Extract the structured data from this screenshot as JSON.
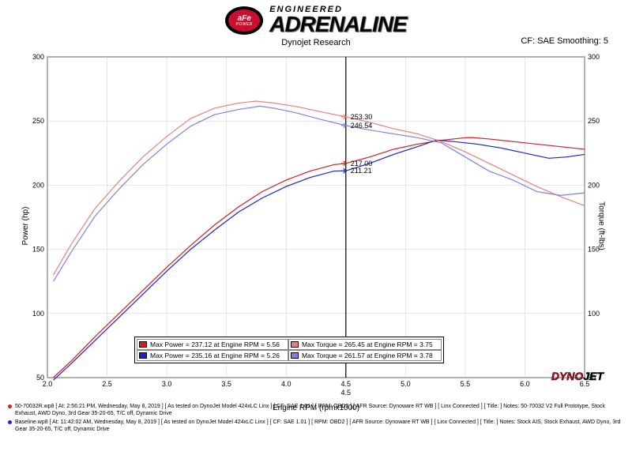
{
  "header": {
    "badge_main": "aFe",
    "badge_sub": "POWER",
    "engineered": "ENGINEERED",
    "adrenaline": "ADRENALINE"
  },
  "subtitle": "Dynojet Research",
  "cf_label": "CF: SAE Smoothing: 5",
  "chart": {
    "type": "line",
    "background": "#ffffff",
    "grid_color": "#cccccc",
    "axis_color": "#000000",
    "x_axis": {
      "label": "Engine RPM (rpmx1000)",
      "min": 2.0,
      "max": 6.5,
      "ticks": [
        2.0,
        2.5,
        3.0,
        3.5,
        4.0,
        4.5,
        5.0,
        5.5,
        6.0,
        6.5
      ],
      "fontsize": 9
    },
    "y_left": {
      "label": "Power (hp)",
      "min": 50,
      "max": 300,
      "ticks": [
        50,
        100,
        150,
        200,
        250,
        300
      ],
      "fontsize": 9
    },
    "y_right": {
      "label": "Torque (ft-lbs)",
      "min": 50,
      "max": 300,
      "ticks": [
        50,
        100,
        150,
        200,
        250,
        300
      ],
      "fontsize": 9
    },
    "cursor_x": 4.5,
    "cursor_label": "4.5",
    "markers": [
      {
        "label": "253.30",
        "x": 4.5,
        "y": 253.3,
        "color": "#e88080"
      },
      {
        "label": "246.54",
        "x": 4.5,
        "y": 246.5,
        "color": "#8080e8"
      },
      {
        "label": "217.00",
        "x": 4.5,
        "y": 217.0,
        "color": "#d02020"
      },
      {
        "label": "211.21",
        "x": 4.5,
        "y": 211.2,
        "color": "#2020d0"
      }
    ],
    "series": [
      {
        "name": "power_red",
        "axis": "left",
        "color": "#d02020",
        "width": 1.2,
        "points": [
          [
            2.05,
            50
          ],
          [
            2.2,
            63
          ],
          [
            2.4,
            82
          ],
          [
            2.6,
            100
          ],
          [
            2.8,
            118
          ],
          [
            3.0,
            136
          ],
          [
            3.2,
            153
          ],
          [
            3.4,
            169
          ],
          [
            3.6,
            183
          ],
          [
            3.8,
            195
          ],
          [
            4.0,
            204
          ],
          [
            4.2,
            211
          ],
          [
            4.4,
            216
          ],
          [
            4.5,
            217
          ],
          [
            4.7,
            222
          ],
          [
            4.9,
            228
          ],
          [
            5.1,
            232
          ],
          [
            5.3,
            235
          ],
          [
            5.5,
            237
          ],
          [
            5.56,
            237.1
          ],
          [
            5.7,
            236
          ],
          [
            5.9,
            234
          ],
          [
            6.1,
            232
          ],
          [
            6.3,
            230
          ],
          [
            6.5,
            228
          ]
        ]
      },
      {
        "name": "power_blue",
        "axis": "left",
        "color": "#2020d0",
        "width": 1.2,
        "points": [
          [
            2.05,
            48
          ],
          [
            2.2,
            61
          ],
          [
            2.4,
            79
          ],
          [
            2.6,
            97
          ],
          [
            2.8,
            115
          ],
          [
            3.0,
            133
          ],
          [
            3.2,
            150
          ],
          [
            3.4,
            165
          ],
          [
            3.6,
            179
          ],
          [
            3.8,
            190
          ],
          [
            4.0,
            199
          ],
          [
            4.2,
            206
          ],
          [
            4.4,
            211
          ],
          [
            4.5,
            211.2
          ],
          [
            4.7,
            217
          ],
          [
            4.9,
            224
          ],
          [
            5.1,
            230
          ],
          [
            5.26,
            235.2
          ],
          [
            5.4,
            234
          ],
          [
            5.6,
            232
          ],
          [
            5.8,
            229
          ],
          [
            6.0,
            225
          ],
          [
            6.2,
            221
          ],
          [
            6.35,
            222
          ],
          [
            6.5,
            224
          ]
        ]
      },
      {
        "name": "torque_red",
        "axis": "right",
        "color": "#e88080",
        "width": 1.2,
        "points": [
          [
            2.05,
            130
          ],
          [
            2.2,
            154
          ],
          [
            2.4,
            182
          ],
          [
            2.6,
            203
          ],
          [
            2.8,
            222
          ],
          [
            3.0,
            238
          ],
          [
            3.2,
            252
          ],
          [
            3.4,
            260
          ],
          [
            3.6,
            264
          ],
          [
            3.75,
            265.5
          ],
          [
            3.9,
            264
          ],
          [
            4.1,
            261
          ],
          [
            4.3,
            257
          ],
          [
            4.5,
            253.3
          ],
          [
            4.7,
            249
          ],
          [
            4.9,
            244
          ],
          [
            5.1,
            240
          ],
          [
            5.3,
            234
          ],
          [
            5.5,
            226
          ],
          [
            5.7,
            217
          ],
          [
            5.9,
            208
          ],
          [
            6.1,
            199
          ],
          [
            6.3,
            191
          ],
          [
            6.5,
            184
          ]
        ]
      },
      {
        "name": "torque_blue",
        "axis": "right",
        "color": "#8080e8",
        "width": 1.2,
        "points": [
          [
            2.05,
            125
          ],
          [
            2.2,
            148
          ],
          [
            2.4,
            176
          ],
          [
            2.6,
            197
          ],
          [
            2.8,
            216
          ],
          [
            3.0,
            232
          ],
          [
            3.2,
            246
          ],
          [
            3.4,
            255
          ],
          [
            3.6,
            259
          ],
          [
            3.78,
            261.6
          ],
          [
            3.9,
            260
          ],
          [
            4.1,
            256
          ],
          [
            4.3,
            251
          ],
          [
            4.5,
            246.5
          ],
          [
            4.7,
            243
          ],
          [
            4.9,
            240
          ],
          [
            5.1,
            237
          ],
          [
            5.3,
            233
          ],
          [
            5.5,
            222
          ],
          [
            5.7,
            211
          ],
          [
            5.9,
            204
          ],
          [
            6.1,
            195
          ],
          [
            6.3,
            192
          ],
          [
            6.5,
            194
          ]
        ]
      }
    ]
  },
  "legend": {
    "rows": [
      {
        "swatch": "#d02020",
        "text": "Max Power = 237.12 at Engine RPM = 5.56"
      },
      {
        "swatch": "#e88080",
        "text": "Max Torque = 265.45 at Engine RPM = 3.75"
      },
      {
        "swatch": "#2020d0",
        "text": "Max Power = 235.16 at Engine RPM = 5.26"
      },
      {
        "swatch": "#8080e8",
        "text": "Max Torque = 261.57 at Engine RPM = 3.78"
      }
    ]
  },
  "dyno_logo": {
    "part1": "DYNO",
    "part2": "JET"
  },
  "footer": {
    "rows": [
      {
        "dot_color": "#d02020",
        "text": "50-70032R.wp8 [ At: 2:56:21 PM, Wednesday, May 8, 2019 ]  [ As tested on DynoJet Model 424xLC Linx ]  [ CF: SAE 1.01 ]  [ RPM: OBD2 ]  [ AFR Source: Dynoware RT WB ]  [ Linx Connected ]  [ Title:  ]   Notes: 50-70032 V2 Full Prototype, Stock Exhaust, AWD Dyno, 3rd Gear 35-20-65, T/C off, Dynamic Drive"
      },
      {
        "dot_color": "#2020d0",
        "text": "Baseline.wp8 [ At: 11:42:02 AM, Wednesday, May 8, 2019 ]  [ As tested on DynoJet Model 424xLC Linx ]  [ CF: SAE 1.01 ]  [ RPM: OBD2 ]  [ AFR Source: Dynoware RT WB ]  [ Linx Connected ]  [ Title:  ]   Notes: Stock AIS, Stock Exhaust, AWD Dyno, 3rd Gear 35-20-65, T/C off, Dynamic Drive"
      }
    ]
  }
}
